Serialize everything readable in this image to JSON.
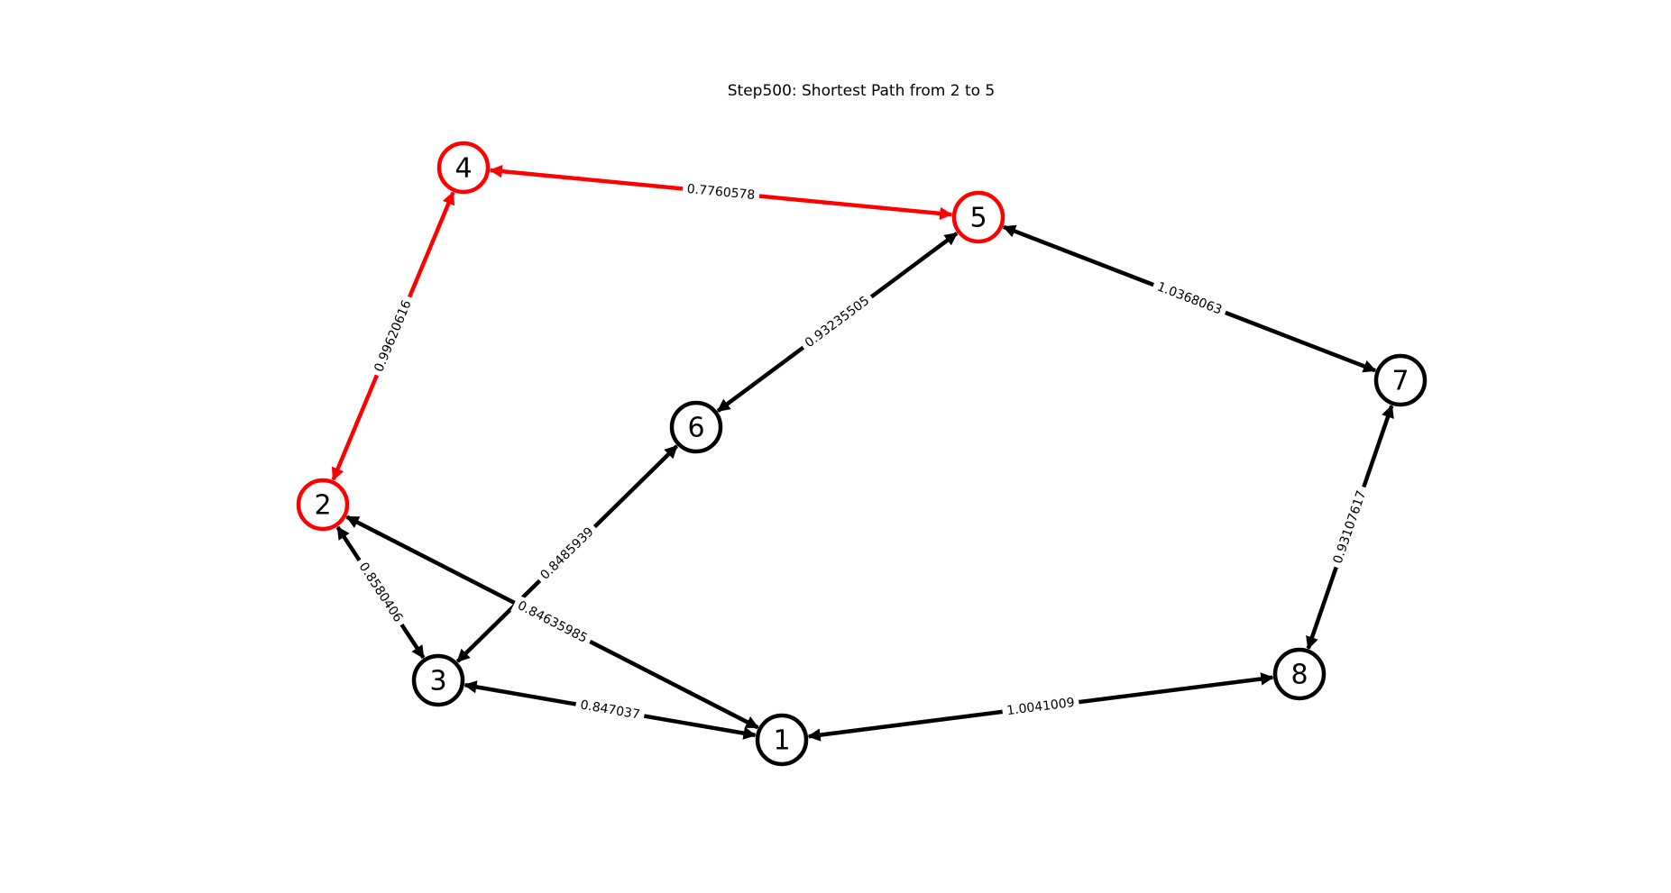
{
  "title": "Step500: Shortest Path from 2 to 5",
  "colors": {
    "default": "#000000",
    "highlight": "#ff0000"
  },
  "nodes": [
    {
      "id": "1",
      "highlighted": false
    },
    {
      "id": "2",
      "highlighted": true
    },
    {
      "id": "3",
      "highlighted": false
    },
    {
      "id": "4",
      "highlighted": true
    },
    {
      "id": "5",
      "highlighted": true
    },
    {
      "id": "6",
      "highlighted": false
    },
    {
      "id": "7",
      "highlighted": false
    },
    {
      "id": "8",
      "highlighted": false
    }
  ],
  "edges": [
    {
      "source": "4",
      "target": "5",
      "weight": "0.7760578",
      "highlighted": true
    },
    {
      "source": "2",
      "target": "4",
      "weight": "0.99620616",
      "highlighted": true
    },
    {
      "source": "6",
      "target": "5",
      "weight": "0.93235505",
      "highlighted": false
    },
    {
      "source": "5",
      "target": "7",
      "weight": "1.0368063",
      "highlighted": false
    },
    {
      "source": "3",
      "target": "6",
      "weight": "0.8485939",
      "highlighted": false
    },
    {
      "source": "2",
      "target": "3",
      "weight": "0.8580406",
      "highlighted": false
    },
    {
      "source": "2",
      "target": "1",
      "weight": "0.84635985",
      "highlighted": false
    },
    {
      "source": "3",
      "target": "1",
      "weight": "0.847037",
      "highlighted": false
    },
    {
      "source": "1",
      "target": "8",
      "weight": "1.0041009",
      "highlighted": false
    },
    {
      "source": "8",
      "target": "7",
      "weight": "0.93107617",
      "highlighted": false
    }
  ]
}
